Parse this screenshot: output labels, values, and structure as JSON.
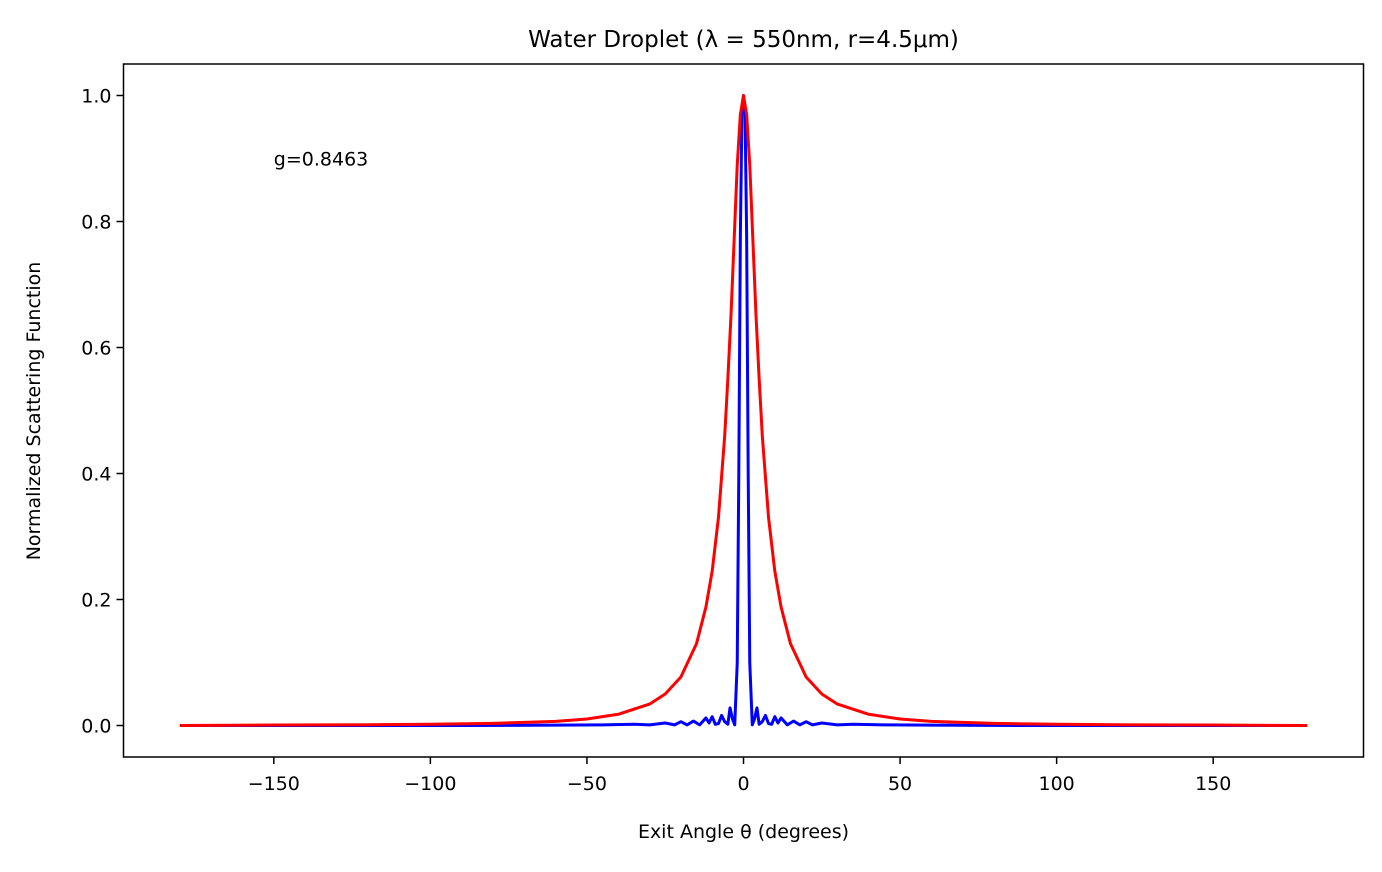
{
  "chart_data": {
    "type": "line",
    "title": "Water Droplet (λ = 550nm, r=4.5μm)",
    "xlabel": "Exit Angle θ (degrees)",
    "ylabel": "Normalized Scattering Function",
    "xlim": [
      -198,
      198
    ],
    "ylim": [
      -0.05,
      1.05
    ],
    "x_ticks": [
      -150,
      -100,
      -50,
      0,
      50,
      100,
      150
    ],
    "x_tick_labels": [
      "−150",
      "−100",
      "−50",
      "0",
      "50",
      "100",
      "150"
    ],
    "y_ticks": [
      0.0,
      0.2,
      0.4,
      0.6,
      0.8,
      1.0
    ],
    "y_tick_labels": [
      "0.0",
      "0.2",
      "0.4",
      "0.6",
      "0.8",
      "1.0"
    ],
    "grid": false,
    "legend": "none",
    "annotations": [
      {
        "text": "g=0.8463",
        "x": -150,
        "y": 0.9
      }
    ],
    "series": [
      {
        "color": "#0000ff",
        "x": [
          -180,
          -150,
          -120,
          -90,
          -60,
          -45,
          -35,
          -30,
          -25,
          -22,
          -20,
          -18,
          -16,
          -14,
          -12,
          -11,
          -10,
          -9,
          -8,
          -7,
          -6,
          -5,
          -4.3,
          -3.5,
          -2.8,
          -2,
          -1.5,
          -1,
          -0.5,
          0,
          0.5,
          1,
          1.5,
          2,
          2.8,
          3.5,
          4.3,
          5,
          6,
          7,
          8,
          9,
          10,
          11,
          12,
          14,
          16,
          18,
          20,
          22,
          25,
          30,
          35,
          45,
          60,
          90,
          120,
          150,
          180
        ],
        "y": [
          0.0,
          0.0,
          0.0,
          0.0,
          0.0005,
          0.001,
          0.002,
          0.001,
          0.004,
          0.001,
          0.006,
          0.001,
          0.007,
          0.001,
          0.012,
          0.004,
          0.014,
          0.002,
          0.003,
          0.016,
          0.006,
          0.002,
          0.028,
          0.01,
          0.001,
          0.1,
          0.4,
          0.78,
          0.97,
          1.0,
          0.97,
          0.78,
          0.4,
          0.1,
          0.001,
          0.01,
          0.028,
          0.002,
          0.006,
          0.016,
          0.003,
          0.002,
          0.014,
          0.004,
          0.012,
          0.001,
          0.007,
          0.001,
          0.006,
          0.001,
          0.004,
          0.001,
          0.002,
          0.001,
          0.0005,
          0.0,
          0.0,
          0.0,
          0.0
        ]
      },
      {
        "color": "#ff0000",
        "x": [
          -180,
          -150,
          -120,
          -100,
          -80,
          -60,
          -50,
          -40,
          -30,
          -25,
          -20,
          -15,
          -12,
          -10,
          -8,
          -6,
          -5,
          -4,
          -3,
          -2,
          -1,
          0,
          1,
          2,
          3,
          4,
          5,
          6,
          8,
          10,
          12,
          15,
          20,
          25,
          30,
          40,
          50,
          60,
          80,
          100,
          120,
          150,
          180
        ],
        "y": [
          0.0,
          0.0007,
          0.0012,
          0.0019,
          0.0033,
          0.0066,
          0.0103,
          0.0178,
          0.034,
          0.05,
          0.077,
          0.13,
          0.188,
          0.245,
          0.33,
          0.46,
          0.55,
          0.65,
          0.77,
          0.89,
          0.97,
          1.0,
          0.97,
          0.89,
          0.77,
          0.65,
          0.55,
          0.46,
          0.33,
          0.245,
          0.188,
          0.13,
          0.077,
          0.05,
          0.034,
          0.0178,
          0.0103,
          0.0066,
          0.0033,
          0.0019,
          0.0012,
          0.0007,
          0.0
        ]
      }
    ]
  }
}
